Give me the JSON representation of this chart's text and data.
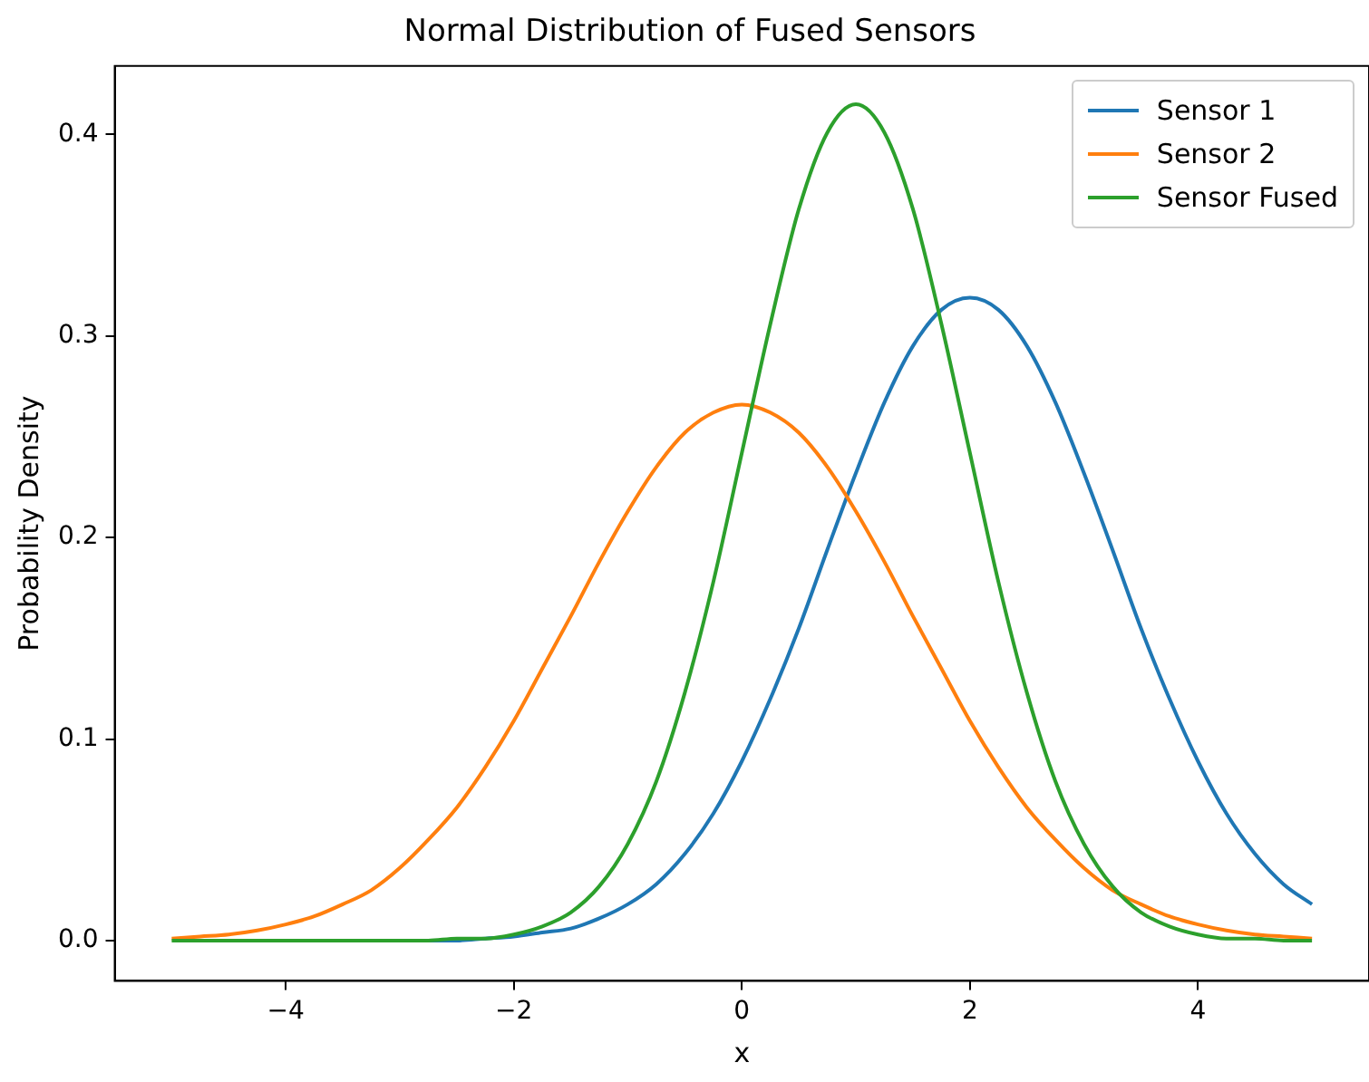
{
  "chart_data": {
    "type": "line",
    "title": "Normal Distribution of Fused Sensors",
    "xlabel": "x",
    "ylabel": "Probability Density",
    "x": [
      -5,
      -4.75,
      -4.5,
      -4.25,
      -4,
      -3.75,
      -3.5,
      -3.25,
      -3,
      -2.75,
      -2.5,
      -2.25,
      -2,
      -1.75,
      -1.5,
      -1.25,
      -1,
      -0.75,
      -0.5,
      -0.25,
      0,
      0.25,
      0.5,
      0.75,
      1,
      1.25,
      1.5,
      1.75,
      2,
      2.25,
      2.5,
      2.75,
      3,
      3.25,
      3.5,
      3.75,
      4,
      4.25,
      4.5,
      4.75,
      5
    ],
    "series": [
      {
        "name": "Sensor 1",
        "color": "#1f77b4",
        "values": [
          null,
          null,
          null,
          null,
          null,
          null,
          null,
          null,
          0,
          0,
          0,
          0.001,
          0.002,
          0.004,
          0.006,
          0.011,
          0.018,
          0.028,
          0.043,
          0.063,
          0.089,
          0.12,
          0.155,
          0.194,
          0.232,
          0.267,
          0.295,
          0.313,
          0.319,
          0.313,
          0.295,
          0.267,
          0.232,
          0.194,
          0.155,
          0.12,
          0.089,
          0.063,
          0.043,
          0.028,
          0.018
        ]
      },
      {
        "name": "Sensor 2",
        "color": "#ff7f0e",
        "values": [
          0.001,
          0.002,
          0.003,
          0.005,
          0.008,
          0.012,
          0.018,
          0.025,
          0.036,
          0.05,
          0.066,
          0.086,
          0.109,
          0.135,
          0.161,
          0.188,
          0.213,
          0.235,
          0.252,
          0.262,
          0.266,
          0.262,
          0.252,
          0.235,
          0.213,
          0.188,
          0.161,
          0.135,
          0.109,
          0.086,
          0.066,
          0.05,
          0.036,
          0.025,
          0.018,
          0.012,
          0.008,
          0.005,
          0.003,
          0.002,
          0.001
        ]
      },
      {
        "name": "Sensor Fused",
        "color": "#2ca02c",
        "values": [
          0,
          0,
          0,
          0,
          0,
          0,
          0,
          0,
          0,
          0,
          0.001,
          0.001,
          0.003,
          0.007,
          0.014,
          0.027,
          0.048,
          0.079,
          0.123,
          0.178,
          0.242,
          0.306,
          0.363,
          0.401,
          0.415,
          0.401,
          0.363,
          0.306,
          0.242,
          0.178,
          0.123,
          0.079,
          0.048,
          0.027,
          0.014,
          0.007,
          0.003,
          0.001,
          0.001,
          0,
          0
        ]
      }
    ],
    "xlim": [
      -5.5,
      5.5
    ],
    "xticks": [
      {
        "value": -4,
        "label": "−4"
      },
      {
        "value": -2,
        "label": "−2"
      },
      0,
      2,
      4
    ],
    "ylim": [
      -0.02,
      0.434
    ],
    "yticks": [
      {
        "value": 0,
        "label": "0.0"
      },
      0.1,
      0.2,
      0.3,
      0.4
    ],
    "grid": false,
    "legend": "top right",
    "marker": "none",
    "line_style": "solid"
  }
}
